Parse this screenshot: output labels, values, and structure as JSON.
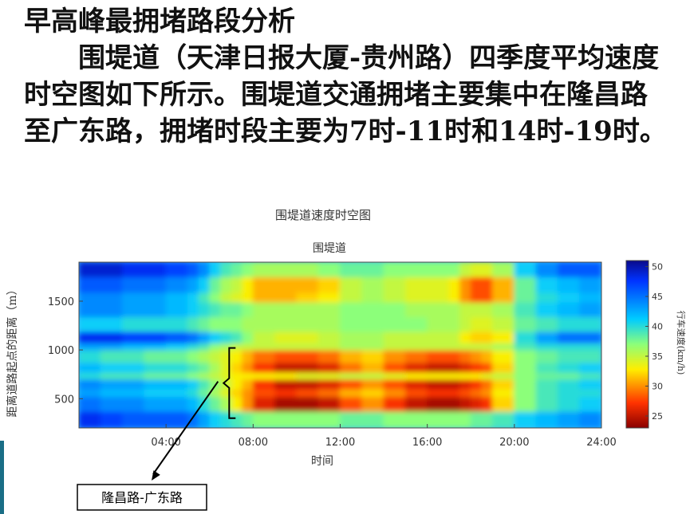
{
  "slide": {
    "heading": "早高峰最拥堵路段分析",
    "paragraph": "围堤道（天津日报大厦-贵州路）四季度平均速度时空图如下所示。围堤道交通拥堵主要集中在隆昌路至广东路，拥堵时段主要为7时-11时和14时-19时。"
  },
  "chart_data": {
    "type": "heatmap",
    "title": "围堤道速度时空图",
    "subtitle": "围堤道",
    "xlabel": "时间",
    "ylabel": "距离道路起点的距离（m）",
    "xlim": [
      0,
      24
    ],
    "ylim": [
      200,
      1900
    ],
    "x_tick_labels": [
      "04:00",
      "08:00",
      "12:00",
      "16:00",
      "20:00",
      "24:00"
    ],
    "x_tick_values": [
      4,
      8,
      12,
      16,
      20,
      24
    ],
    "y_tick_labels": [
      "500",
      "1000",
      "1500"
    ],
    "y_tick_values": [
      500,
      1000,
      1500
    ],
    "colorbar": {
      "label": "行车速度(km/h)",
      "min": 23,
      "max": 51,
      "tick_labels": [
        "50",
        "45",
        "40",
        "35",
        "30",
        "25"
      ],
      "tick_values": [
        50,
        45,
        40,
        35,
        30,
        25
      ]
    },
    "annotation": {
      "label": "隆昌路-广东路",
      "y_range": [
        300,
        1020
      ],
      "x": 6.9
    },
    "row_bands_m": [
      200,
      370,
      520,
      600,
      700,
      770,
      870,
      1000,
      1070,
      1190,
      1340,
      1490,
      1590,
      1750,
      1900
    ],
    "col_edges_h": [
      0,
      1,
      2,
      3,
      4,
      5,
      5.5,
      6,
      6.5,
      7,
      7.5,
      8,
      9,
      10,
      11,
      12,
      13,
      14,
      15,
      16,
      17,
      17.5,
      18,
      18.5,
      19,
      20,
      21,
      22,
      23,
      24
    ],
    "speed_kmh": [
      [
        48,
        47,
        46,
        46,
        46,
        45,
        43,
        41,
        40,
        39,
        38,
        37,
        37,
        37,
        37,
        38,
        38,
        37,
        37,
        37,
        37,
        37,
        38,
        38,
        39,
        41,
        42,
        43,
        44
      ],
      [
        45,
        44,
        44,
        43,
        43,
        42,
        40,
        38,
        36,
        33,
        30,
        26,
        24,
        24,
        25,
        28,
        30,
        27,
        25,
        24,
        24,
        25,
        26,
        27,
        32,
        37,
        39,
        40,
        41
      ],
      [
        43,
        42,
        42,
        41,
        41,
        40,
        38,
        36,
        34,
        32,
        30,
        28,
        27,
        28,
        29,
        31,
        32,
        30,
        28,
        27,
        27,
        28,
        29,
        30,
        33,
        37,
        39,
        40,
        40
      ],
      [
        44,
        43,
        43,
        42,
        42,
        41,
        39,
        37,
        35,
        33,
        31,
        27,
        25,
        25,
        26,
        28,
        30,
        28,
        26,
        25,
        25,
        26,
        27,
        29,
        32,
        37,
        39,
        40,
        41
      ],
      [
        40,
        39,
        39,
        38,
        38,
        37,
        36,
        35,
        34,
        33,
        33,
        33,
        33,
        34,
        34,
        35,
        35,
        34,
        33,
        33,
        33,
        33,
        33,
        34,
        35,
        37,
        38,
        38,
        39
      ],
      [
        42,
        41,
        41,
        40,
        40,
        39,
        38,
        36,
        34,
        32,
        30,
        27,
        25,
        25,
        26,
        29,
        31,
        28,
        26,
        25,
        25,
        26,
        27,
        28,
        32,
        37,
        39,
        40,
        41
      ],
      [
        40,
        39,
        39,
        38,
        38,
        37,
        36,
        35,
        34,
        33,
        31,
        29,
        28,
        28,
        29,
        31,
        32,
        30,
        29,
        28,
        28,
        29,
        30,
        31,
        33,
        37,
        38,
        39,
        39
      ],
      [
        43,
        43,
        42,
        42,
        41,
        40,
        39,
        37,
        36,
        35,
        35,
        35,
        35,
        35,
        35,
        36,
        36,
        35,
        35,
        35,
        35,
        35,
        35,
        35,
        36,
        39,
        40,
        40,
        40
      ],
      [
        48,
        48,
        47,
        47,
        46,
        45,
        43,
        41,
        40,
        39,
        37,
        35,
        34,
        34,
        35,
        36,
        36,
        35,
        35,
        35,
        35,
        33,
        32,
        32,
        33,
        40,
        43,
        45,
        45
      ],
      [
        41,
        41,
        40,
        40,
        40,
        39,
        38,
        37,
        37,
        37,
        36,
        36,
        36,
        36,
        36,
        37,
        37,
        37,
        37,
        36,
        36,
        35,
        34,
        34,
        35,
        38,
        39,
        40,
        40
      ],
      [
        44,
        44,
        43,
        43,
        42,
        41,
        40,
        39,
        38,
        38,
        37,
        36,
        36,
        36,
        36,
        37,
        37,
        37,
        36,
        36,
        36,
        35,
        35,
        35,
        36,
        39,
        41,
        42,
        43
      ],
      [
        44,
        44,
        43,
        43,
        42,
        41,
        39,
        37,
        35,
        34,
        33,
        31,
        31,
        32,
        33,
        35,
        36,
        35,
        34,
        34,
        33,
        30,
        28,
        28,
        31,
        38,
        40,
        41,
        42
      ],
      [
        46,
        46,
        45,
        45,
        44,
        43,
        41,
        38,
        36,
        35,
        33,
        31,
        31,
        31,
        32,
        35,
        36,
        35,
        34,
        34,
        33,
        30,
        28,
        28,
        31,
        38,
        41,
        42,
        43
      ],
      [
        49,
        49,
        48,
        48,
        47,
        46,
        44,
        41,
        39,
        38,
        37,
        36,
        36,
        36,
        37,
        38,
        38,
        37,
        37,
        37,
        37,
        35,
        34,
        34,
        36,
        41,
        44,
        46,
        46
      ]
    ]
  }
}
